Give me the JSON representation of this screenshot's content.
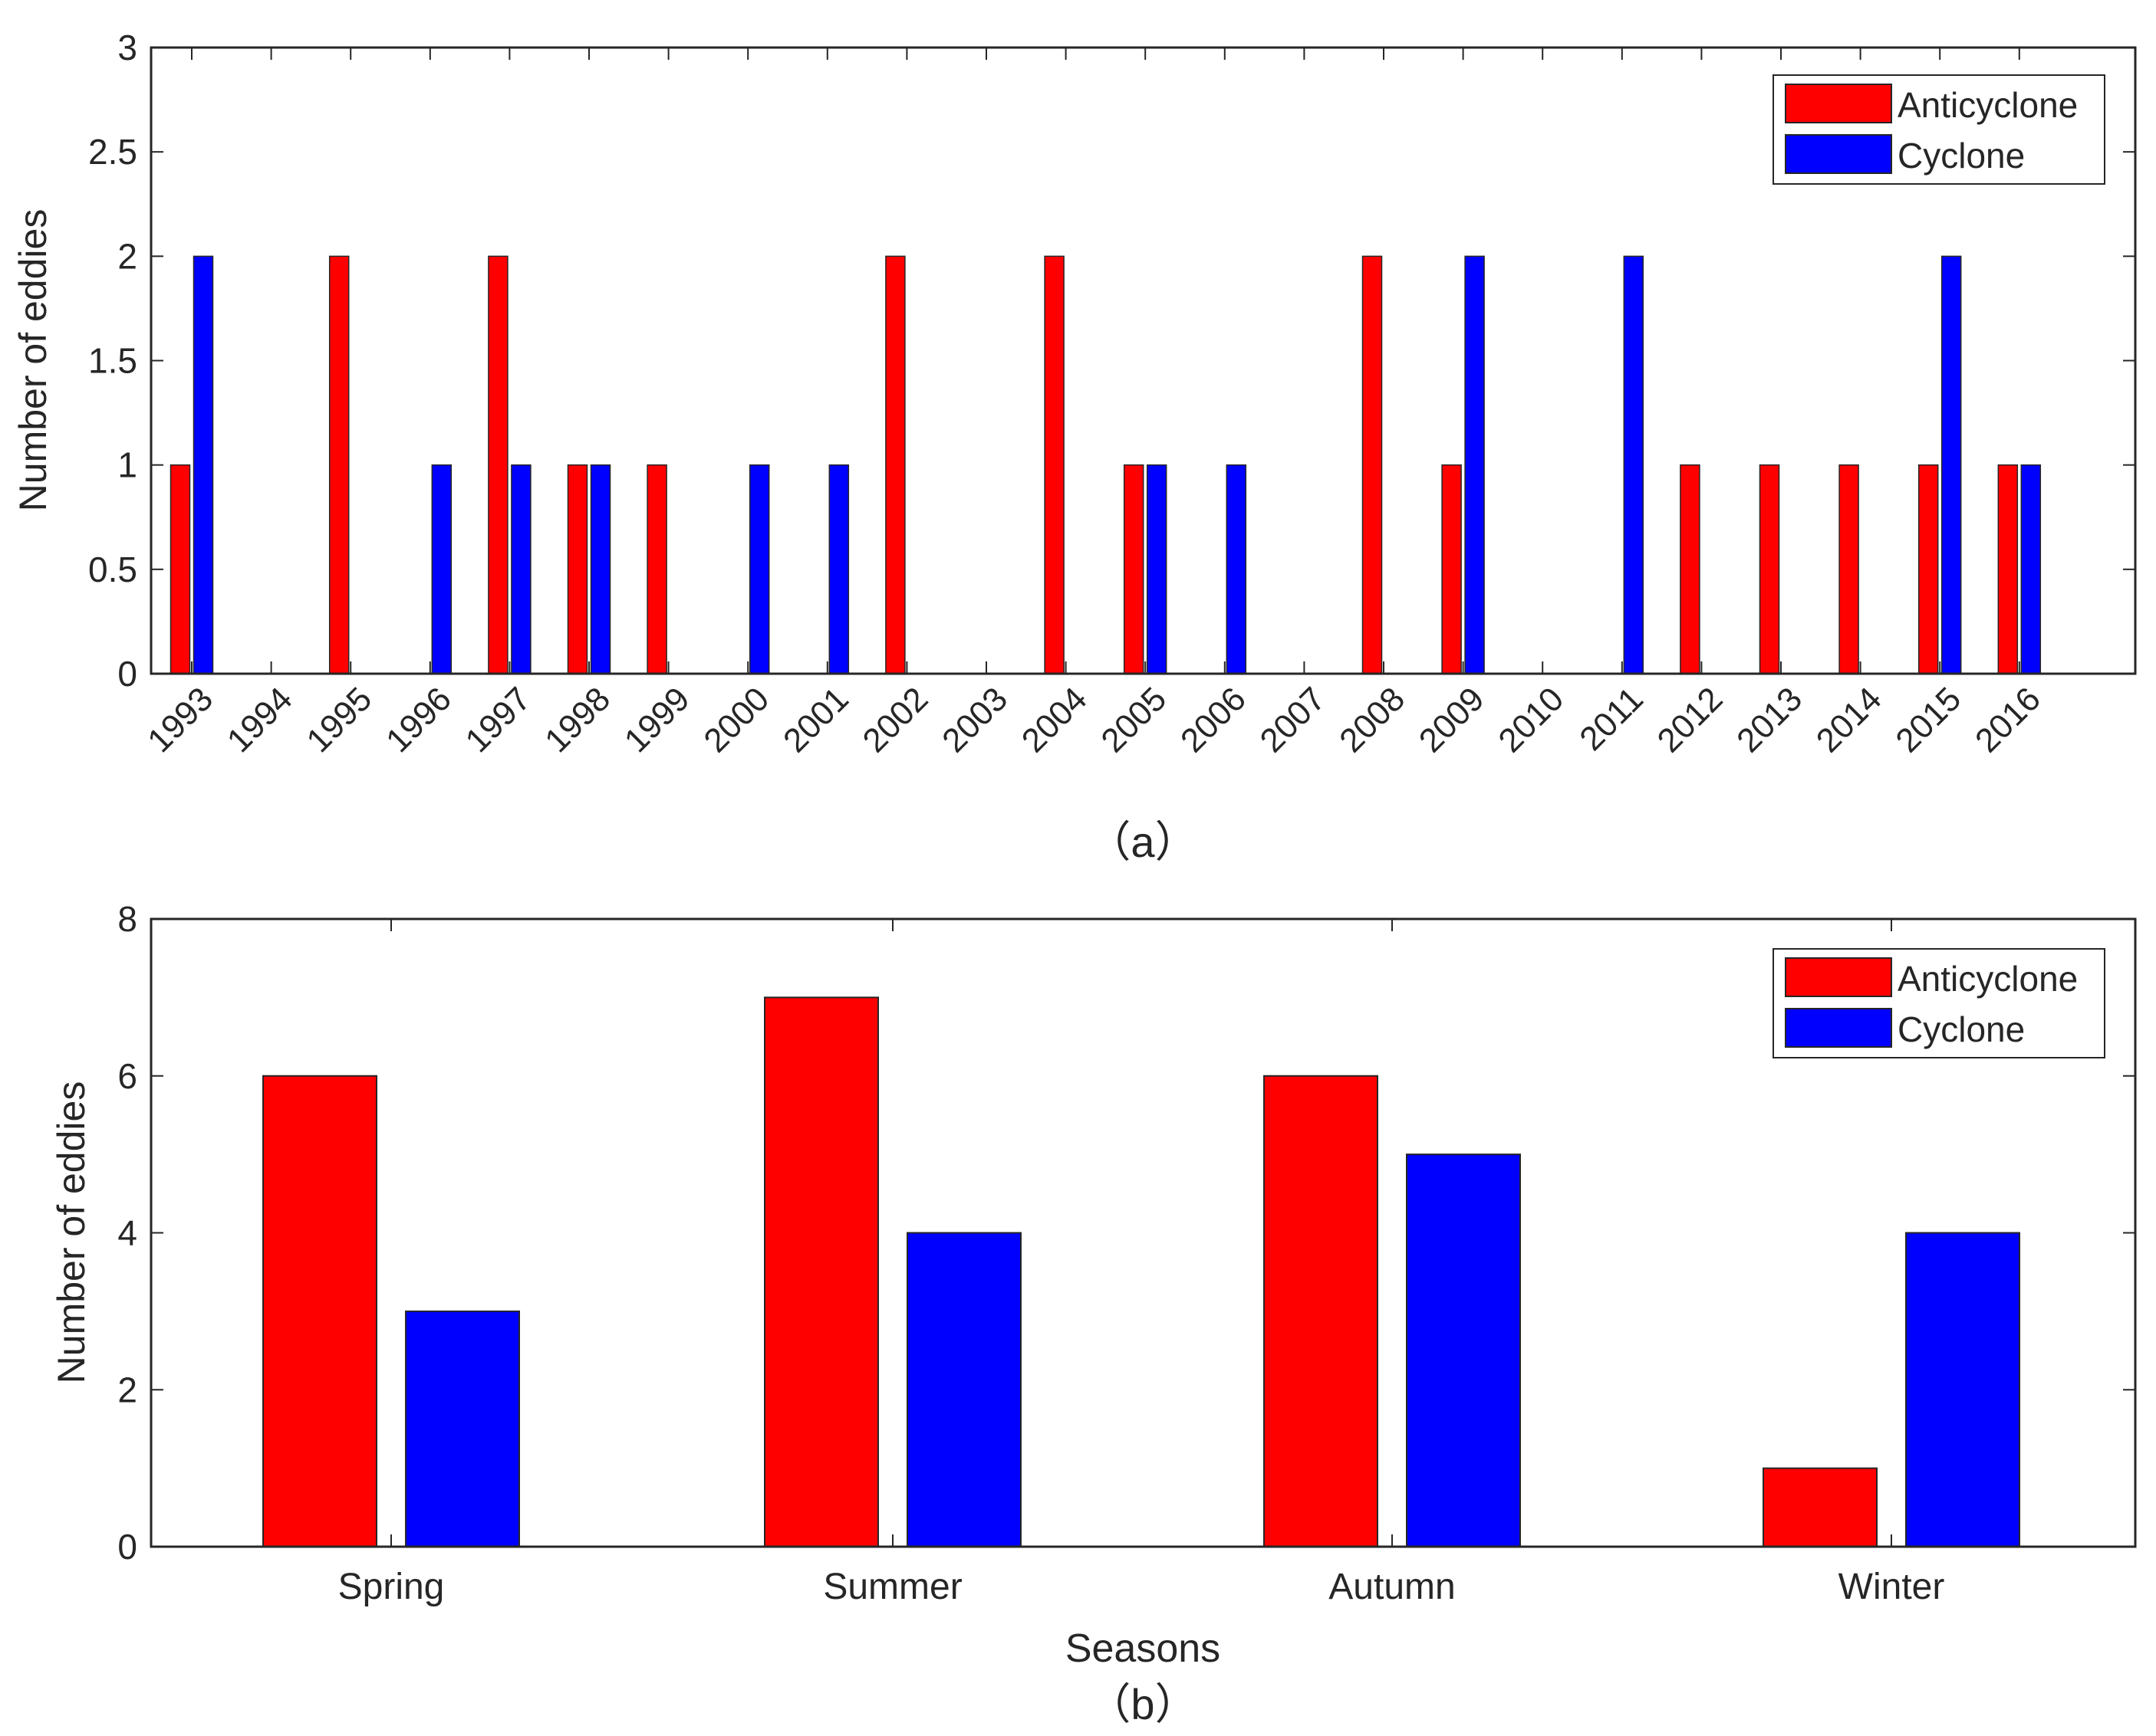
{
  "colors": {
    "anticyclone": "#ff0000",
    "cyclone": "#0000ff",
    "axis": "#262626",
    "background": "#ffffff"
  },
  "chart_data": [
    {
      "type": "bar",
      "panel_label": "（a）",
      "title": "",
      "xlabel": "",
      "ylabel": "Number of eddies",
      "ylim": [
        0,
        3
      ],
      "yticks": [
        "0",
        "0.5",
        "1",
        "1.5",
        "2",
        "2.5",
        "3"
      ],
      "yticks_values": [
        0,
        0.5,
        1,
        1.5,
        2,
        2.5,
        3
      ],
      "categories": [
        "1993",
        "1994",
        "1995",
        "1996",
        "1997",
        "1998",
        "1999",
        "2000",
        "2001",
        "2002",
        "2003",
        "2004",
        "2005",
        "2006",
        "2007",
        "2008",
        "2009",
        "2010",
        "2011",
        "2012",
        "2013",
        "2014",
        "2015",
        "2016"
      ],
      "series": [
        {
          "name": "Anticyclone",
          "color": "#ff0000",
          "values": [
            1,
            0,
            2,
            0,
            2,
            1,
            1,
            0,
            0,
            2,
            0,
            2,
            1,
            0,
            0,
            2,
            1,
            0,
            0,
            1,
            1,
            1,
            1,
            1
          ]
        },
        {
          "name": "Cyclone",
          "color": "#0000ff",
          "values": [
            2,
            0,
            0,
            1,
            1,
            1,
            0,
            1,
            1,
            0,
            0,
            0,
            1,
            1,
            0,
            0,
            2,
            0,
            2,
            0,
            0,
            0,
            2,
            1
          ]
        }
      ],
      "legend": {
        "placement": "top-right",
        "entries": [
          "Anticyclone",
          "Cyclone"
        ]
      },
      "grid": false
    },
    {
      "type": "bar",
      "panel_label": "（b）",
      "title": "",
      "xlabel": "Seasons",
      "ylabel": "Number of eddies",
      "ylim": [
        0,
        8
      ],
      "yticks": [
        "0",
        "2",
        "4",
        "6",
        "8"
      ],
      "yticks_values": [
        0,
        2,
        4,
        6,
        8
      ],
      "categories": [
        "Spring",
        "Summer",
        "Autumn",
        "Winter"
      ],
      "series": [
        {
          "name": "Anticyclone",
          "color": "#ff0000",
          "values": [
            6,
            7,
            6,
            1
          ]
        },
        {
          "name": "Cyclone",
          "color": "#0000ff",
          "values": [
            3,
            4,
            5,
            4
          ]
        }
      ],
      "legend": {
        "placement": "top-right",
        "entries": [
          "Anticyclone",
          "Cyclone"
        ]
      },
      "grid": false
    }
  ]
}
